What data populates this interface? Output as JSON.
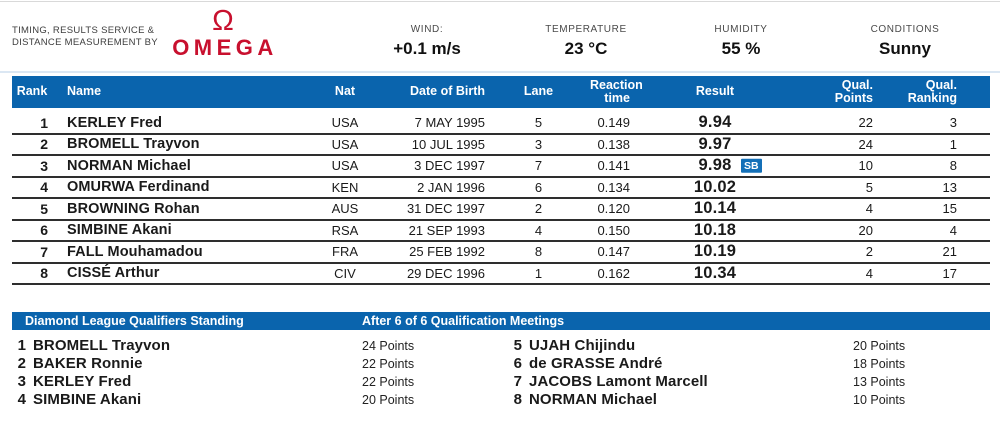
{
  "branding": {
    "service_line1": "TIMING, RESULTS SERVICE &",
    "service_line2": "DISTANCE MEASUREMENT BY",
    "logo_symbol": "Ω",
    "logo_text": "OMEGA"
  },
  "colors": {
    "header_blue": "#0a64ad",
    "badge_blue": "#1470b8",
    "omega_red": "#c8102e"
  },
  "conditions": {
    "wind_label": "WIND:",
    "wind_value": "+0.1 m/s",
    "temperature_label": "TEMPERATURE",
    "temperature_value": "23 °C",
    "humidity_label": "HUMIDITY",
    "humidity_value": "55 %",
    "conditions_label": "CONDITIONS",
    "conditions_value": "Sunny"
  },
  "results": {
    "columns": {
      "rank": "Rank",
      "name": "Name",
      "nat": "Nat",
      "dob": "Date of Birth",
      "lane": "Lane",
      "reaction": [
        "Reaction",
        "time"
      ],
      "result": "Result",
      "points": [
        "Qual.",
        "Points"
      ],
      "ranking": [
        "Qual.",
        "Ranking"
      ]
    },
    "rows": [
      {
        "rank": "1",
        "name": "KERLEY Fred",
        "nat": "USA",
        "dob": "7 MAY 1995",
        "lane": "5",
        "reaction": "0.149",
        "result": "9.94",
        "note": "",
        "qual_points": "22",
        "qual_ranking": "3"
      },
      {
        "rank": "2",
        "name": "BROMELL Trayvon",
        "nat": "USA",
        "dob": "10 JUL 1995",
        "lane": "3",
        "reaction": "0.138",
        "result": "9.97",
        "note": "",
        "qual_points": "24",
        "qual_ranking": "1"
      },
      {
        "rank": "3",
        "name": "NORMAN Michael",
        "nat": "USA",
        "dob": "3 DEC 1997",
        "lane": "7",
        "reaction": "0.141",
        "result": "9.98",
        "note": "SB",
        "qual_points": "10",
        "qual_ranking": "8"
      },
      {
        "rank": "4",
        "name": "OMURWA Ferdinand",
        "nat": "KEN",
        "dob": "2 JAN 1996",
        "lane": "6",
        "reaction": "0.134",
        "result": "10.02",
        "note": "",
        "qual_points": "5",
        "qual_ranking": "13"
      },
      {
        "rank": "5",
        "name": "BROWNING Rohan",
        "nat": "AUS",
        "dob": "31 DEC 1997",
        "lane": "2",
        "reaction": "0.120",
        "result": "10.14",
        "note": "",
        "qual_points": "4",
        "qual_ranking": "15"
      },
      {
        "rank": "6",
        "name": "SIMBINE Akani",
        "nat": "RSA",
        "dob": "21 SEP 1993",
        "lane": "4",
        "reaction": "0.150",
        "result": "10.18",
        "note": "",
        "qual_points": "20",
        "qual_ranking": "4"
      },
      {
        "rank": "7",
        "name": "FALL Mouhamadou",
        "nat": "FRA",
        "dob": "25 FEB 1992",
        "lane": "8",
        "reaction": "0.147",
        "result": "10.19",
        "note": "",
        "qual_points": "2",
        "qual_ranking": "21"
      },
      {
        "rank": "8",
        "name": "CISSÉ Arthur",
        "nat": "CIV",
        "dob": "29 DEC 1996",
        "lane": "1",
        "reaction": "0.162",
        "result": "10.34",
        "note": "",
        "qual_points": "4",
        "qual_ranking": "17"
      }
    ]
  },
  "standings": {
    "title": "Diamond League Qualifiers Standing",
    "subtitle": "After 6 of 6 Qualification Meetings",
    "left": [
      {
        "rank": "1",
        "name": "BROMELL Trayvon",
        "points": "24 Points"
      },
      {
        "rank": "2",
        "name": "BAKER Ronnie",
        "points": "22 Points"
      },
      {
        "rank": "3",
        "name": "KERLEY Fred",
        "points": "22 Points"
      },
      {
        "rank": "4",
        "name": "SIMBINE Akani",
        "points": "20 Points"
      }
    ],
    "right": [
      {
        "rank": "5",
        "name": "UJAH Chijindu",
        "points": "20 Points"
      },
      {
        "rank": "6",
        "name": "de GRASSE André",
        "points": "18 Points"
      },
      {
        "rank": "7",
        "name": "JACOBS Lamont Marcell",
        "points": "13 Points"
      },
      {
        "rank": "8",
        "name": "NORMAN Michael",
        "points": "10 Points"
      }
    ]
  }
}
